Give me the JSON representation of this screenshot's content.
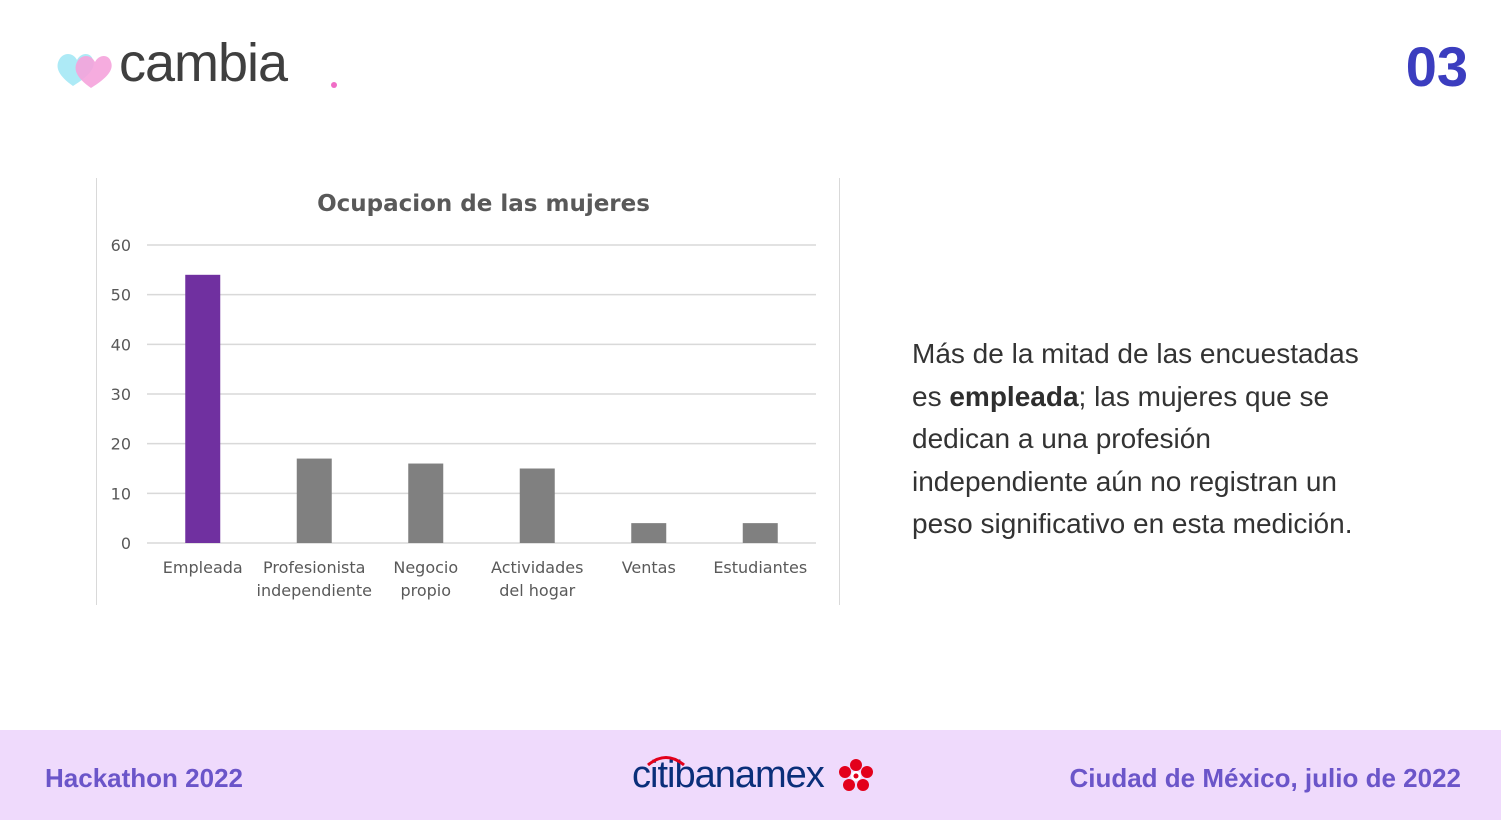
{
  "header": {
    "logo_text": "cambia",
    "slide_number": "03"
  },
  "chart_data": {
    "type": "bar",
    "title": "Ocupacion de las mujeres",
    "categories": [
      [
        "Empleada"
      ],
      [
        "Profesionista",
        "independiente"
      ],
      [
        "Negocio",
        "propio"
      ],
      [
        "Actividades",
        "del hogar"
      ],
      [
        "Ventas"
      ],
      [
        "Estudiantes"
      ]
    ],
    "values": [
      54,
      17,
      16,
      15,
      4,
      4
    ],
    "ylim": [
      0,
      60
    ],
    "yticks": [
      0,
      10,
      20,
      30,
      40,
      50,
      60
    ],
    "grid": true,
    "legend": "none",
    "xlabel": "",
    "ylabel": "",
    "highlight_index": 0,
    "colors": {
      "highlight": "#7030a0",
      "default": "#808080",
      "grid": "#d9d9d9"
    }
  },
  "description": {
    "part1": "Más de la mitad de las encuestadas es ",
    "bold": "empleada",
    "part2": "; las mujeres que se dedican a una profesión independiente aún no registran un peso significativo en esta medición."
  },
  "footer": {
    "left": "Hackathon 2022",
    "sponsor_logo": "citibanamex",
    "right": "Ciudad de México, julio de 2022"
  },
  "colors": {
    "accent": "#3b3dbf",
    "footer_bg": "#efdafc",
    "footer_text": "#6b55c9"
  }
}
